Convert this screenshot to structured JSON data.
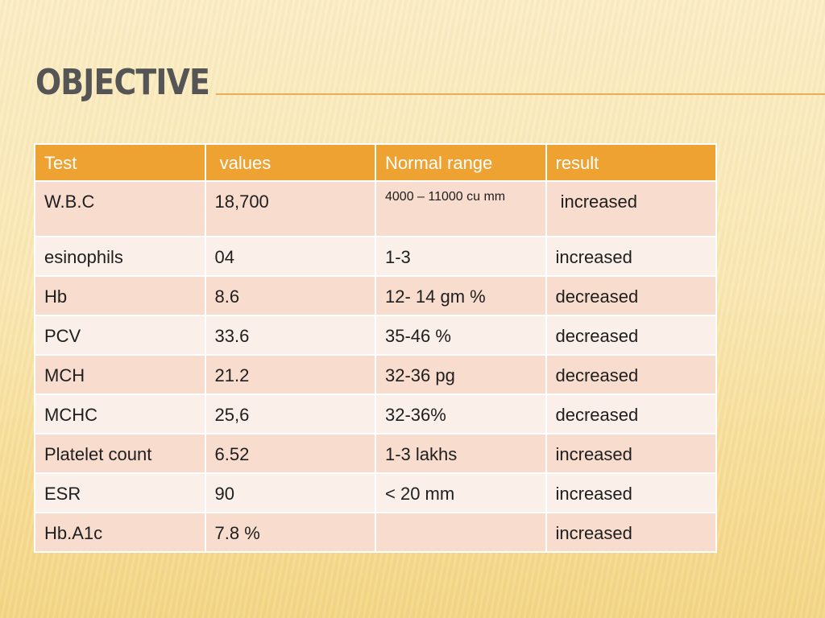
{
  "slide": {
    "title": "OBJECTIVE"
  },
  "table": {
    "headers": [
      "Test",
      " values",
      "Normal range",
      "result"
    ],
    "rows": [
      [
        "W.B.C",
        "18,700",
        "4000 – 11000 cu mm",
        " increased"
      ],
      [
        "esinophils",
        "04",
        "1-3",
        "increased"
      ],
      [
        "Hb",
        "8.6",
        "12- 14 gm %",
        "decreased"
      ],
      [
        "PCV",
        "33.6",
        "35-46 %",
        "decreased"
      ],
      [
        "MCH",
        "21.2",
        "32-36 pg",
        "decreased"
      ],
      [
        "MCHC",
        "25,6",
        "32-36%",
        "decreased"
      ],
      [
        "Platelet count",
        "6.52",
        "1-3 lakhs",
        "increased"
      ],
      [
        "ESR",
        "90",
        "< 20 mm",
        "increased"
      ],
      [
        "Hb.A1c",
        "7.8 %",
        "",
        "increased"
      ]
    ]
  },
  "colors": {
    "header": "#eda232",
    "row_band_dark": "#f8ddcf",
    "row_band_light": "#fbefe9",
    "title_rule": "#ecae5a"
  }
}
